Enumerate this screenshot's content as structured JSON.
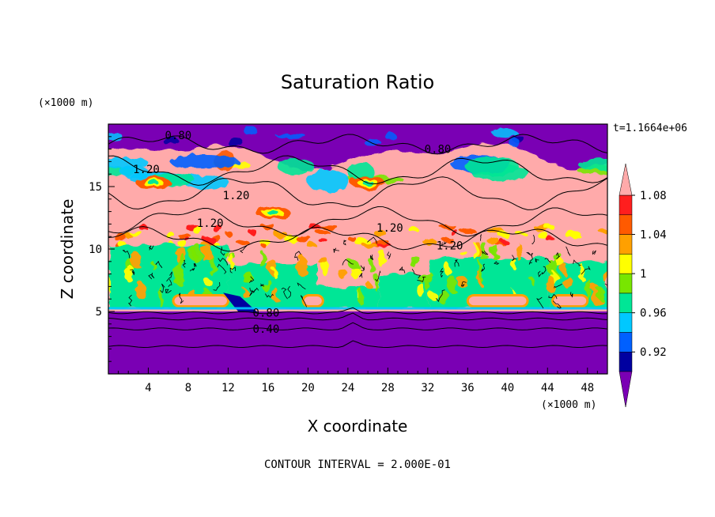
{
  "chart_data": {
    "type": "heatmap",
    "title": "Saturation Ratio",
    "xlabel": "X coordinate",
    "ylabel": "Z coordinate",
    "x_unit_label": "(×1000 m)",
    "y_unit_label": "(×1000 m)",
    "time_label": "t=1.1664e+06",
    "footer": "CONTOUR INTERVAL = 2.000E-01",
    "xlim": [
      0,
      50
    ],
    "ylim": [
      0,
      20
    ],
    "x_ticks": [
      4,
      8,
      12,
      16,
      20,
      24,
      28,
      32,
      36,
      40,
      44,
      48
    ],
    "y_ticks": [
      5,
      10,
      15
    ],
    "colorbar": {
      "levels": [
        0.9,
        0.92,
        0.94,
        0.96,
        0.98,
        1.0,
        1.02,
        1.04,
        1.06,
        1.08,
        1.1
      ],
      "tick_labels": [
        "0.92",
        "0.96",
        "1",
        "1.04",
        "1.08"
      ],
      "colors": [
        "#7a00b4",
        "#0000a0",
        "#0060ff",
        "#00c8ff",
        "#00e696",
        "#78e600",
        "#ffff00",
        "#ffa000",
        "#ff5a00",
        "#ff1e1e",
        "#ffaaaa"
      ]
    },
    "contour_labels": [
      {
        "text": "0.80",
        "x": 7,
        "y": 19.1
      },
      {
        "text": "0.80",
        "x": 33,
        "y": 18.0
      },
      {
        "text": "1.20",
        "x": 3.8,
        "y": 16.4
      },
      {
        "text": "1.20",
        "x": 12.8,
        "y": 14.3
      },
      {
        "text": "1.20",
        "x": 10.2,
        "y": 12.1
      },
      {
        "text": "1.20",
        "x": 28.2,
        "y": 11.7
      },
      {
        "text": "1.20",
        "x": 34.2,
        "y": 10.3
      },
      {
        "text": "0.80",
        "x": 15.8,
        "y": 4.9
      },
      {
        "text": "0.40",
        "x": 15.8,
        "y": 3.6
      }
    ],
    "fields": {
      "surface_dry_layer_top_z": 5.0,
      "upper_dry_layer_bottom_z": 17.5,
      "supersaturated_layer_z": [
        10.5,
        17.0
      ],
      "near_saturated_band_z": [
        5.2,
        10.5
      ],
      "isolines_low_z": [
        2.2,
        3.6,
        4.4,
        4.9
      ]
    }
  }
}
